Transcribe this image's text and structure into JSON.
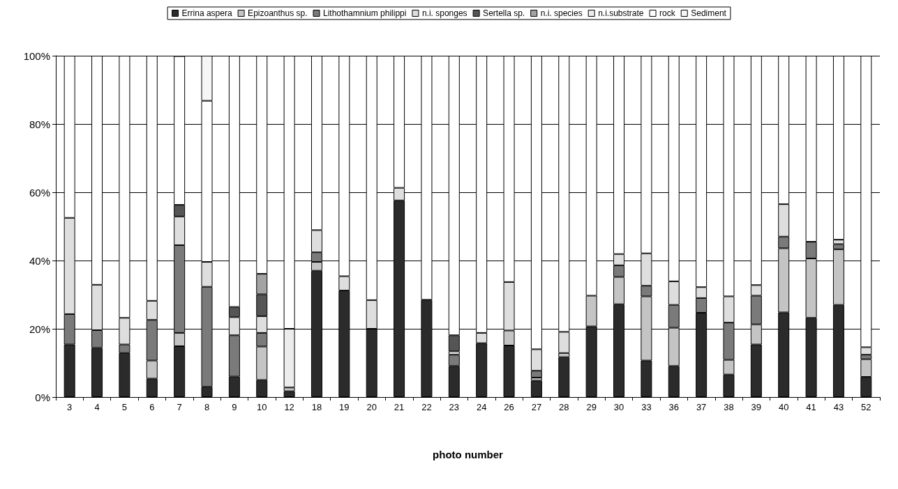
{
  "chart_data": {
    "type": "bar",
    "stacked": true,
    "xlabel": "photo number",
    "legend": "top",
    "grid": "y",
    "categories": [
      "3",
      "4",
      "5",
      "6",
      "7",
      "8",
      "9",
      "10",
      "12",
      "18",
      "19",
      "20",
      "21",
      "22",
      "23",
      "24",
      "26",
      "27",
      "28",
      "29",
      "30",
      "33",
      "36",
      "37",
      "38",
      "39",
      "40",
      "41",
      "43",
      "52"
    ],
    "ylim": [
      0,
      100
    ],
    "yticks": [
      {
        "value": 0,
        "label": "0%"
      },
      {
        "value": 20,
        "label": "20%"
      },
      {
        "value": 40,
        "label": "40%"
      },
      {
        "value": 60,
        "label": "60%"
      },
      {
        "value": 80,
        "label": "80%"
      },
      {
        "value": 100,
        "label": "100%"
      }
    ],
    "series": [
      {
        "name": "Errina aspera",
        "color": "#2b2b2b",
        "values": [
          15.4,
          14.4,
          12.9,
          5.4,
          14.9,
          3.0,
          6.0,
          5.0,
          1.7,
          37.0,
          31.2,
          20.0,
          57.6,
          28.5,
          9.1,
          15.8,
          15.1,
          4.8,
          11.7,
          20.7,
          27.2,
          10.7,
          9.1,
          24.7,
          6.6,
          15.4,
          24.8,
          23.2,
          27.0,
          5.9
        ]
      },
      {
        "name": "Epizoanthus sp.",
        "color": "#c4c4c4",
        "values": [
          null,
          null,
          null,
          5.3,
          3.9,
          null,
          null,
          9.8,
          1.1,
          2.6,
          null,
          null,
          null,
          null,
          null,
          null,
          4.4,
          0.9,
          1.2,
          9.0,
          8.0,
          18.8,
          11.2,
          null,
          4.3,
          5.9,
          18.8,
          17.4,
          16.3,
          5.2
        ]
      },
      {
        "name": "Lithothamnium philippi",
        "color": "#7a7a7a",
        "values": [
          8.9,
          5.2,
          2.5,
          11.9,
          25.7,
          29.3,
          12.1,
          4.0,
          null,
          2.8,
          null,
          null,
          null,
          null,
          3.3,
          null,
          null,
          2.0,
          null,
          null,
          3.4,
          3.1,
          6.7,
          4.3,
          10.9,
          8.4,
          3.4,
          4.9,
          1.5,
          1.3
        ]
      },
      {
        "name": "n.i. sponges",
        "color": "#dedede",
        "values": [
          28.2,
          13.3,
          7.8,
          5.6,
          8.4,
          7.3,
          5.3,
          4.9,
          null,
          6.5,
          4.2,
          8.4,
          3.7,
          null,
          1.0,
          3.0,
          14.2,
          6.3,
          6.2,
          null,
          3.3,
          9.5,
          6.9,
          3.2,
          7.7,
          3.1,
          9.5,
          null,
          1.3,
          2.2
        ]
      },
      {
        "name": "Sertella sp.",
        "color": "#555555",
        "values": [
          null,
          null,
          null,
          null,
          3.4,
          null,
          3.0,
          6.4,
          null,
          null,
          null,
          null,
          null,
          null,
          4.7,
          null,
          null,
          null,
          null,
          null,
          null,
          null,
          null,
          null,
          null,
          null,
          null,
          null,
          null,
          null
        ]
      },
      {
        "name": "n.i. species",
        "color": "#a3a3a3",
        "values": [
          null,
          null,
          null,
          null,
          null,
          null,
          null,
          6.0,
          null,
          null,
          null,
          null,
          null,
          null,
          null,
          null,
          null,
          null,
          null,
          null,
          null,
          null,
          null,
          null,
          null,
          null,
          null,
          null,
          null,
          null
        ]
      },
      {
        "name": "n.i.substrate",
        "color": "#ececec",
        "values": [
          null,
          null,
          null,
          null,
          null,
          null,
          null,
          null,
          17.2,
          null,
          null,
          null,
          null,
          null,
          null,
          null,
          null,
          null,
          null,
          null,
          null,
          null,
          null,
          null,
          null,
          null,
          null,
          null,
          null,
          null
        ]
      },
      {
        "name": "rock",
        "color": "#ffffff",
        "values": [
          47.5,
          67.1,
          76.8,
          71.8,
          43.6,
          47.2,
          73.6,
          63.9,
          80.0,
          51.1,
          64.6,
          71.6,
          38.7,
          71.5,
          81.9,
          81.2,
          66.3,
          86.0,
          80.9,
          70.3,
          58.1,
          57.9,
          66.1,
          67.8,
          70.5,
          67.2,
          43.5,
          54.5,
          53.9,
          85.4
        ]
      },
      {
        "name": "Sediment",
        "color": "#f6f6f6",
        "values": [
          null,
          null,
          null,
          null,
          null,
          13.2,
          null,
          null,
          null,
          null,
          null,
          null,
          null,
          null,
          null,
          null,
          null,
          null,
          null,
          null,
          null,
          null,
          null,
          null,
          null,
          null,
          null,
          null,
          null,
          null
        ]
      }
    ]
  }
}
